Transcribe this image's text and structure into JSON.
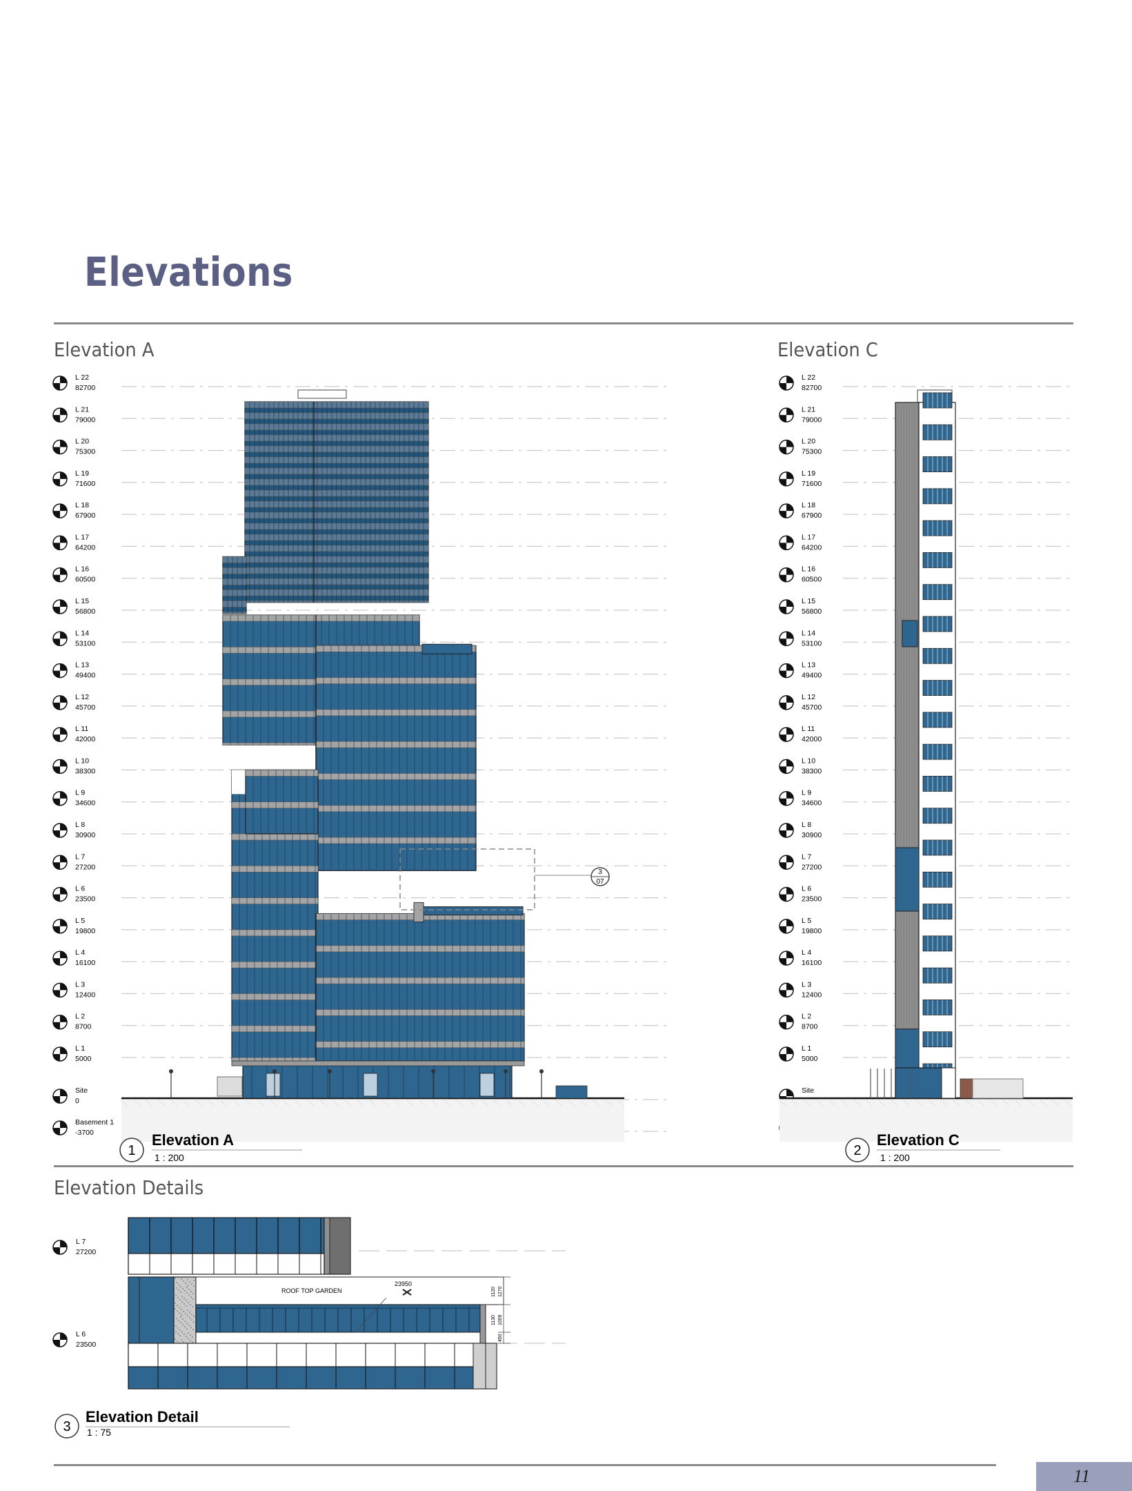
{
  "page": {
    "title": "Elevations",
    "page_number": "11"
  },
  "sections": {
    "elevation_a": "Elevation A",
    "elevation_c": "Elevation C",
    "details": "Elevation Details"
  },
  "levels": [
    {
      "name": "L 22",
      "value": "82700"
    },
    {
      "name": "L 21",
      "value": "79000"
    },
    {
      "name": "L 20",
      "value": "75300"
    },
    {
      "name": "L 19",
      "value": "71600"
    },
    {
      "name": "L 18",
      "value": "67900"
    },
    {
      "name": "L 17",
      "value": "64200"
    },
    {
      "name": "L 16",
      "value": "60500"
    },
    {
      "name": "L 15",
      "value": "56800"
    },
    {
      "name": "L 14",
      "value": "53100"
    },
    {
      "name": "L 13",
      "value": "49400"
    },
    {
      "name": "L 12",
      "value": "45700"
    },
    {
      "name": "L 11",
      "value": "42000"
    },
    {
      "name": "L 10",
      "value": "38300"
    },
    {
      "name": "L 9",
      "value": "34600"
    },
    {
      "name": "L 8",
      "value": "30900"
    },
    {
      "name": "L 7",
      "value": "27200"
    },
    {
      "name": "L 6",
      "value": "23500"
    },
    {
      "name": "L 5",
      "value": "19800"
    },
    {
      "name": "L 4",
      "value": "16100"
    },
    {
      "name": "L 3",
      "value": "12400"
    },
    {
      "name": "L 2",
      "value": "8700"
    },
    {
      "name": "L 1",
      "value": "5000"
    },
    {
      "name": "Site",
      "value": "0"
    },
    {
      "name": "Basement 1",
      "value": "-3700"
    }
  ],
  "callout": {
    "top": "3",
    "bottom": "07"
  },
  "drawings": {
    "a": {
      "number": "1",
      "title": "Elevation A",
      "scale": "1 : 200"
    },
    "c": {
      "number": "2",
      "title": "Elevation C",
      "scale": "1 : 200"
    },
    "d": {
      "number": "3",
      "title": "Elevation Detail",
      "scale": "1 : 75"
    }
  },
  "detail": {
    "levels": [
      {
        "name": "L 7",
        "value": "27200"
      },
      {
        "name": "L 6",
        "value": "23500"
      }
    ],
    "roof_label": "ROOF TOP GARDEN",
    "spot_level": "23950",
    "dim_upper_a": "1120",
    "dim_upper_b": "1270",
    "dim_mid_a": "1130",
    "dim_mid_b": "1009",
    "dim_low": "450"
  },
  "colors": {
    "glass": "#2e6690",
    "glass_dark": "#23547a",
    "panel": "#a4a4a4",
    "title": "#5b5f84",
    "accent": "#9a9fbb"
  }
}
